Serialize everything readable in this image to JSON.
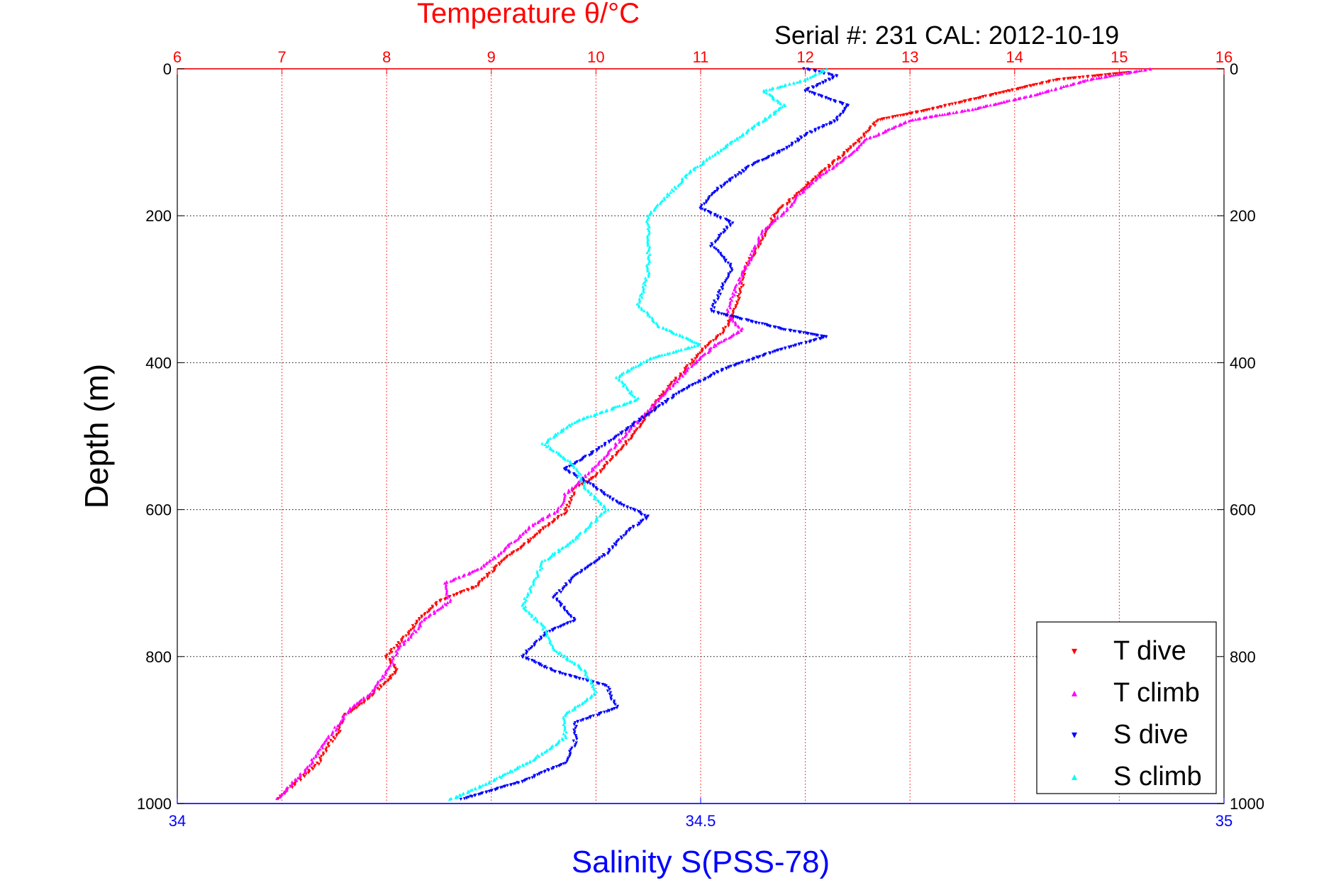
{
  "chart_data": {
    "type": "scatter",
    "title": "Temperature θ/°C",
    "subtitle": "Serial #: 231  CAL: 2012-10-19",
    "ylabel": "Depth (m)",
    "xlabel_bottom": "Salinity S(PSS-78)",
    "xlabel_top": "Temperature θ/°C",
    "ylim": [
      0,
      1000
    ],
    "y_reversed": true,
    "y_ticks": [
      0,
      200,
      400,
      600,
      800,
      1000
    ],
    "x_top_lim": [
      6,
      16
    ],
    "x_top_ticks": [
      6,
      7,
      8,
      9,
      10,
      11,
      12,
      13,
      14,
      15,
      16
    ],
    "x_bottom_lim": [
      34,
      35
    ],
    "x_bottom_ticks": [
      34,
      34.5,
      35
    ],
    "x_bottom_tick_labels": [
      "34",
      "34.5",
      "35"
    ],
    "grid": true,
    "legend_position": "bottom-right",
    "colors": {
      "title": "#ff0000",
      "salinity_axis": "#0000ff",
      "t_dive": "#ff0000",
      "t_climb": "#ff00ff",
      "s_dive": "#0000ff",
      "s_climb": "#00ffff",
      "temp_grid": "#ff0000",
      "depth_grid": "#000000"
    },
    "series": [
      {
        "name": "T dive",
        "axis": "temperature",
        "marker": "triangle-down",
        "points": [
          [
            15.1,
            5
          ],
          [
            14.4,
            15
          ],
          [
            13.8,
            35
          ],
          [
            13.2,
            55
          ],
          [
            12.7,
            70
          ],
          [
            12.5,
            100
          ],
          [
            12.25,
            130
          ],
          [
            12.0,
            160
          ],
          [
            11.85,
            180
          ],
          [
            11.7,
            200
          ],
          [
            11.6,
            230
          ],
          [
            11.45,
            265
          ],
          [
            11.4,
            290
          ],
          [
            11.35,
            320
          ],
          [
            11.3,
            340
          ],
          [
            11.2,
            360
          ],
          [
            11.0,
            385
          ],
          [
            10.85,
            410
          ],
          [
            10.65,
            440
          ],
          [
            10.5,
            470
          ],
          [
            10.35,
            500
          ],
          [
            10.15,
            530
          ],
          [
            10.0,
            555
          ],
          [
            9.8,
            570
          ],
          [
            9.75,
            590
          ],
          [
            9.7,
            605
          ],
          [
            9.5,
            625
          ],
          [
            9.3,
            650
          ],
          [
            9.15,
            665
          ],
          [
            9.0,
            685
          ],
          [
            8.85,
            705
          ],
          [
            8.5,
            725
          ],
          [
            8.3,
            750
          ],
          [
            8.2,
            770
          ],
          [
            8.1,
            785
          ],
          [
            8.0,
            800
          ],
          [
            8.1,
            820
          ],
          [
            7.95,
            840
          ],
          [
            7.8,
            860
          ],
          [
            7.6,
            880
          ],
          [
            7.55,
            900
          ],
          [
            7.45,
            920
          ],
          [
            7.35,
            945
          ],
          [
            7.15,
            970
          ],
          [
            6.95,
            995
          ]
        ]
      },
      {
        "name": "T climb",
        "axis": "temperature",
        "marker": "triangle-up",
        "points": [
          [
            15.3,
            0
          ],
          [
            14.7,
            15
          ],
          [
            14.2,
            35
          ],
          [
            13.6,
            55
          ],
          [
            13.0,
            70
          ],
          [
            12.6,
            95
          ],
          [
            12.4,
            120
          ],
          [
            12.1,
            150
          ],
          [
            11.95,
            170
          ],
          [
            11.8,
            195
          ],
          [
            11.6,
            220
          ],
          [
            11.5,
            250
          ],
          [
            11.4,
            280
          ],
          [
            11.3,
            310
          ],
          [
            11.25,
            335
          ],
          [
            11.4,
            355
          ],
          [
            11.15,
            375
          ],
          [
            10.9,
            405
          ],
          [
            10.7,
            435
          ],
          [
            10.5,
            465
          ],
          [
            10.3,
            495
          ],
          [
            10.1,
            525
          ],
          [
            9.9,
            555
          ],
          [
            9.7,
            580
          ],
          [
            9.65,
            600
          ],
          [
            9.4,
            620
          ],
          [
            9.2,
            645
          ],
          [
            8.9,
            680
          ],
          [
            8.55,
            700
          ],
          [
            8.6,
            725
          ],
          [
            8.35,
            750
          ],
          [
            8.25,
            770
          ],
          [
            8.1,
            790
          ],
          [
            8.05,
            810
          ],
          [
            7.95,
            830
          ],
          [
            7.85,
            850
          ],
          [
            7.65,
            870
          ],
          [
            7.55,
            890
          ],
          [
            7.4,
            920
          ],
          [
            7.25,
            950
          ],
          [
            7.05,
            980
          ],
          [
            6.95,
            995
          ]
        ]
      },
      {
        "name": "S dive",
        "axis": "salinity",
        "marker": "triangle-down",
        "points": [
          [
            34.6,
            0
          ],
          [
            34.63,
            10
          ],
          [
            34.6,
            30
          ],
          [
            34.64,
            50
          ],
          [
            34.63,
            70
          ],
          [
            34.6,
            90
          ],
          [
            34.58,
            110
          ],
          [
            34.55,
            130
          ],
          [
            34.53,
            150
          ],
          [
            34.51,
            170
          ],
          [
            34.5,
            190
          ],
          [
            34.53,
            210
          ],
          [
            34.51,
            240
          ],
          [
            34.53,
            270
          ],
          [
            34.52,
            300
          ],
          [
            34.51,
            330
          ],
          [
            34.58,
            355
          ],
          [
            34.62,
            365
          ],
          [
            34.57,
            385
          ],
          [
            34.52,
            410
          ],
          [
            34.48,
            440
          ],
          [
            34.45,
            470
          ],
          [
            34.42,
            500
          ],
          [
            34.4,
            520
          ],
          [
            34.37,
            545
          ],
          [
            34.4,
            570
          ],
          [
            34.42,
            590
          ],
          [
            34.45,
            610
          ],
          [
            34.43,
            630
          ],
          [
            34.41,
            660
          ],
          [
            34.38,
            690
          ],
          [
            34.36,
            720
          ],
          [
            34.38,
            750
          ],
          [
            34.35,
            770
          ],
          [
            34.33,
            800
          ],
          [
            34.36,
            820
          ],
          [
            34.41,
            840
          ],
          [
            34.42,
            870
          ],
          [
            34.38,
            890
          ],
          [
            34.38,
            920
          ],
          [
            34.37,
            945
          ],
          [
            34.33,
            970
          ],
          [
            34.27,
            995
          ]
        ]
      },
      {
        "name": "S climb",
        "axis": "salinity",
        "marker": "triangle-up",
        "points": [
          [
            34.62,
            0
          ],
          [
            34.6,
            15
          ],
          [
            34.56,
            30
          ],
          [
            34.58,
            50
          ],
          [
            34.55,
            80
          ],
          [
            34.52,
            110
          ],
          [
            34.49,
            140
          ],
          [
            34.47,
            170
          ],
          [
            34.45,
            200
          ],
          [
            34.45,
            240
          ],
          [
            34.45,
            280
          ],
          [
            34.44,
            320
          ],
          [
            34.46,
            350
          ],
          [
            34.5,
            375
          ],
          [
            34.45,
            395
          ],
          [
            34.42,
            420
          ],
          [
            34.44,
            450
          ],
          [
            34.38,
            480
          ],
          [
            34.35,
            510
          ],
          [
            34.38,
            540
          ],
          [
            34.39,
            570
          ],
          [
            34.41,
            600
          ],
          [
            34.38,
            640
          ],
          [
            34.35,
            670
          ],
          [
            34.34,
            700
          ],
          [
            34.33,
            730
          ],
          [
            34.35,
            760
          ],
          [
            34.36,
            790
          ],
          [
            34.39,
            820
          ],
          [
            34.4,
            850
          ],
          [
            34.37,
            880
          ],
          [
            34.37,
            910
          ],
          [
            34.34,
            940
          ],
          [
            34.3,
            970
          ],
          [
            34.26,
            995
          ]
        ]
      }
    ]
  },
  "legend": {
    "items": [
      {
        "label": "T dive",
        "color": "#ff0000",
        "marker": "▾"
      },
      {
        "label": "T climb",
        "color": "#ff00ff",
        "marker": "▴"
      },
      {
        "label": "S dive",
        "color": "#0000ff",
        "marker": "▾"
      },
      {
        "label": "S climb",
        "color": "#00ffff",
        "marker": "▴"
      }
    ]
  }
}
